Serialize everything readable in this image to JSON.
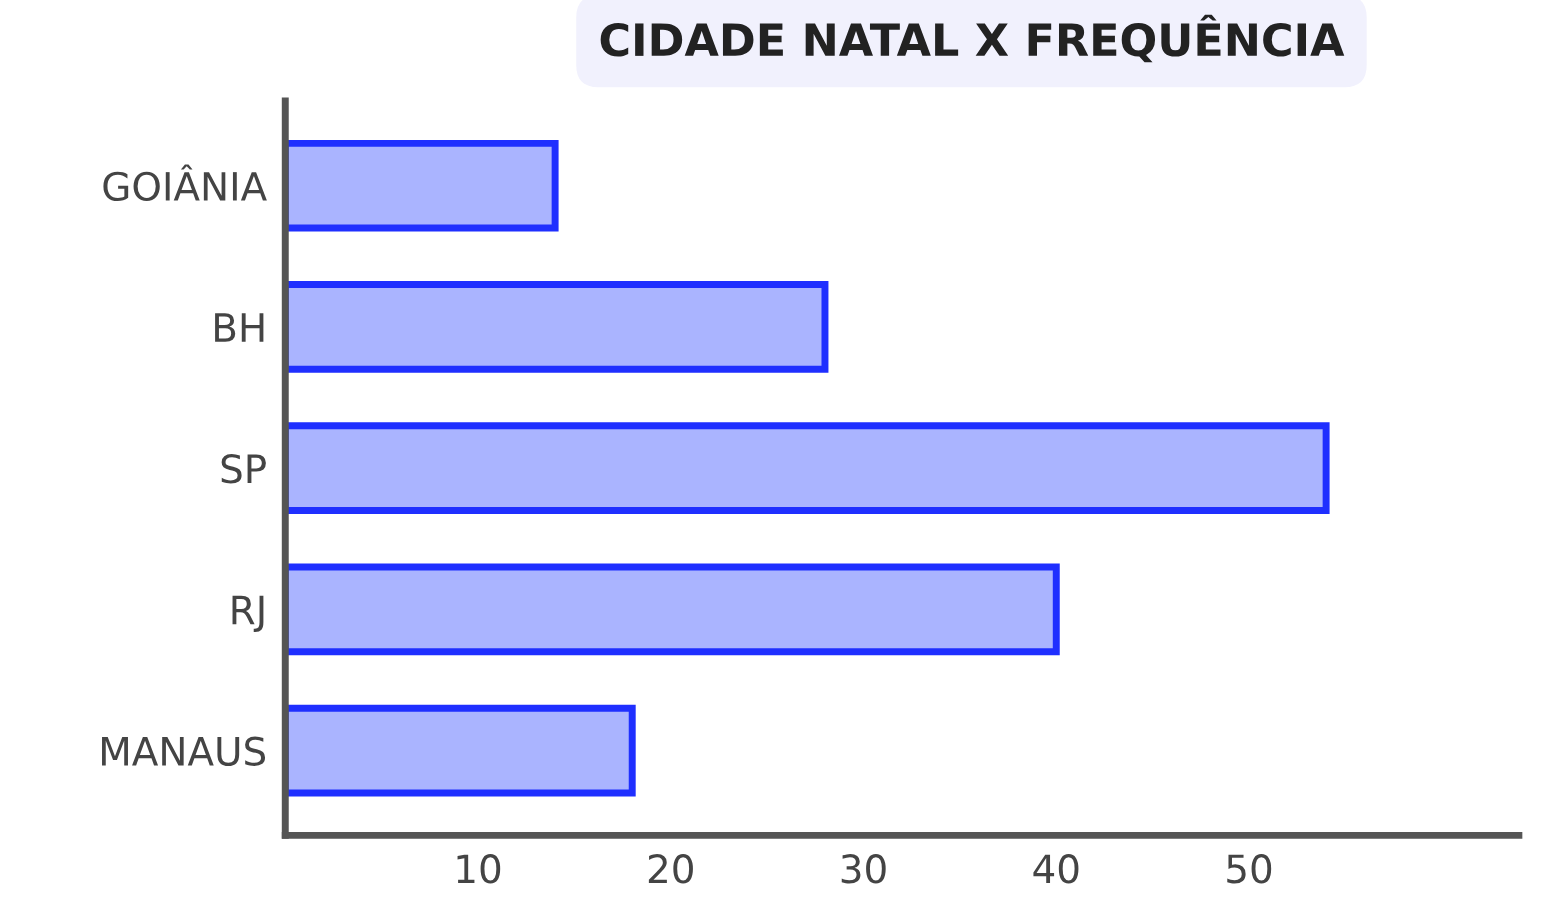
{
  "chart_data": {
    "type": "bar",
    "orientation": "horizontal",
    "title": "CIDADE NATAL X FREQUÊNCIA",
    "categories": [
      "GOIÂNIA",
      "BH",
      "SP",
      "RJ",
      "MANAUS"
    ],
    "series": [
      {
        "color": "#aab4ff",
        "values": [
          14,
          28,
          54,
          40,
          18
        ]
      }
    ],
    "xlim": [
      0,
      64
    ],
    "xticks": [
      10,
      20,
      30,
      40,
      50
    ],
    "grid": false,
    "legend": false
  }
}
